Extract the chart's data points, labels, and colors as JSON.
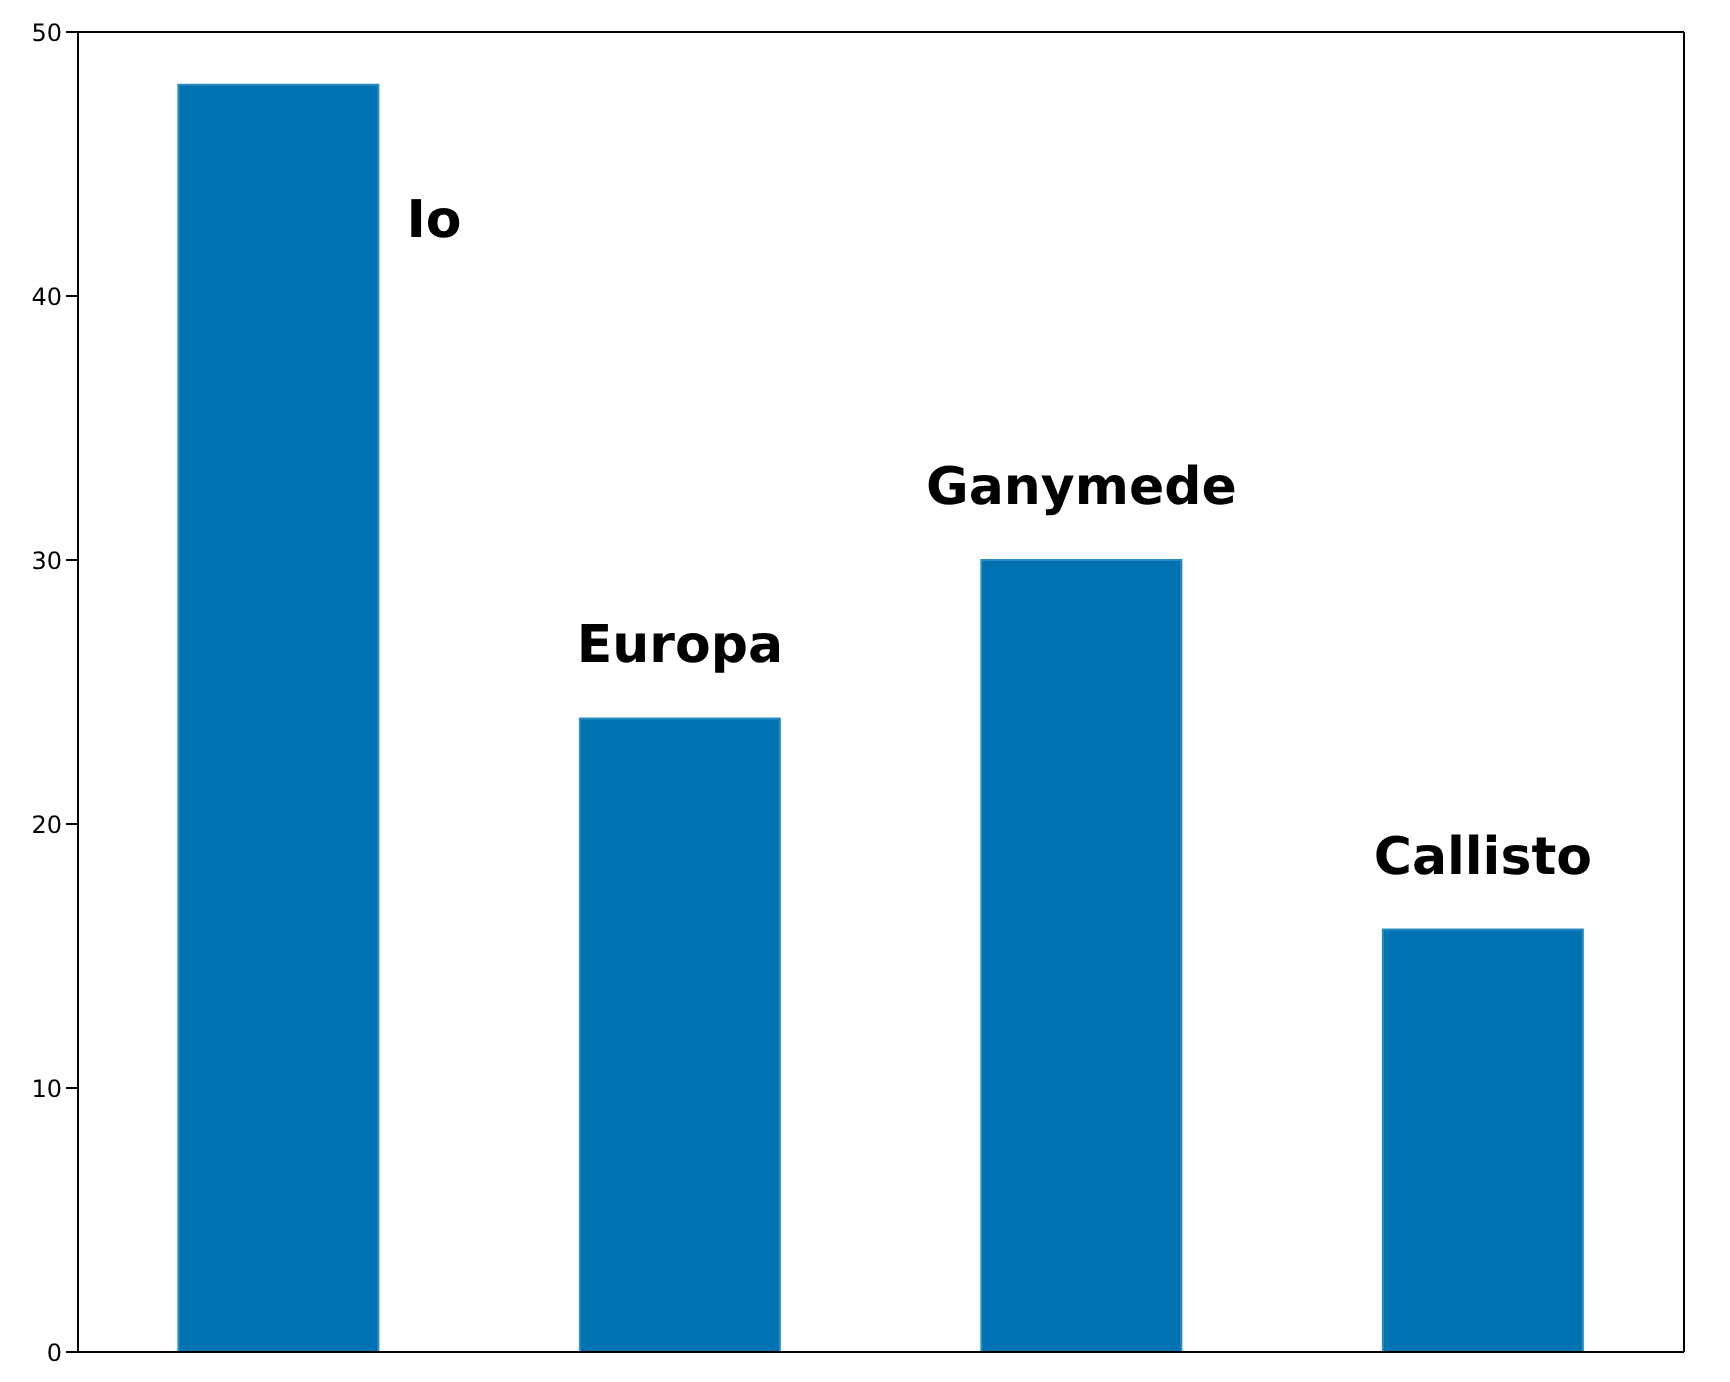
{
  "chart_data": {
    "type": "bar",
    "categories": [
      "Io",
      "Europa",
      "Ganymede",
      "Callisto"
    ],
    "values": [
      48,
      24,
      30,
      16
    ],
    "color": "#0072b2",
    "ylim": [
      0,
      50
    ],
    "yticks": [
      0,
      10,
      20,
      30,
      40,
      50
    ],
    "tick_labels": "y"
  }
}
